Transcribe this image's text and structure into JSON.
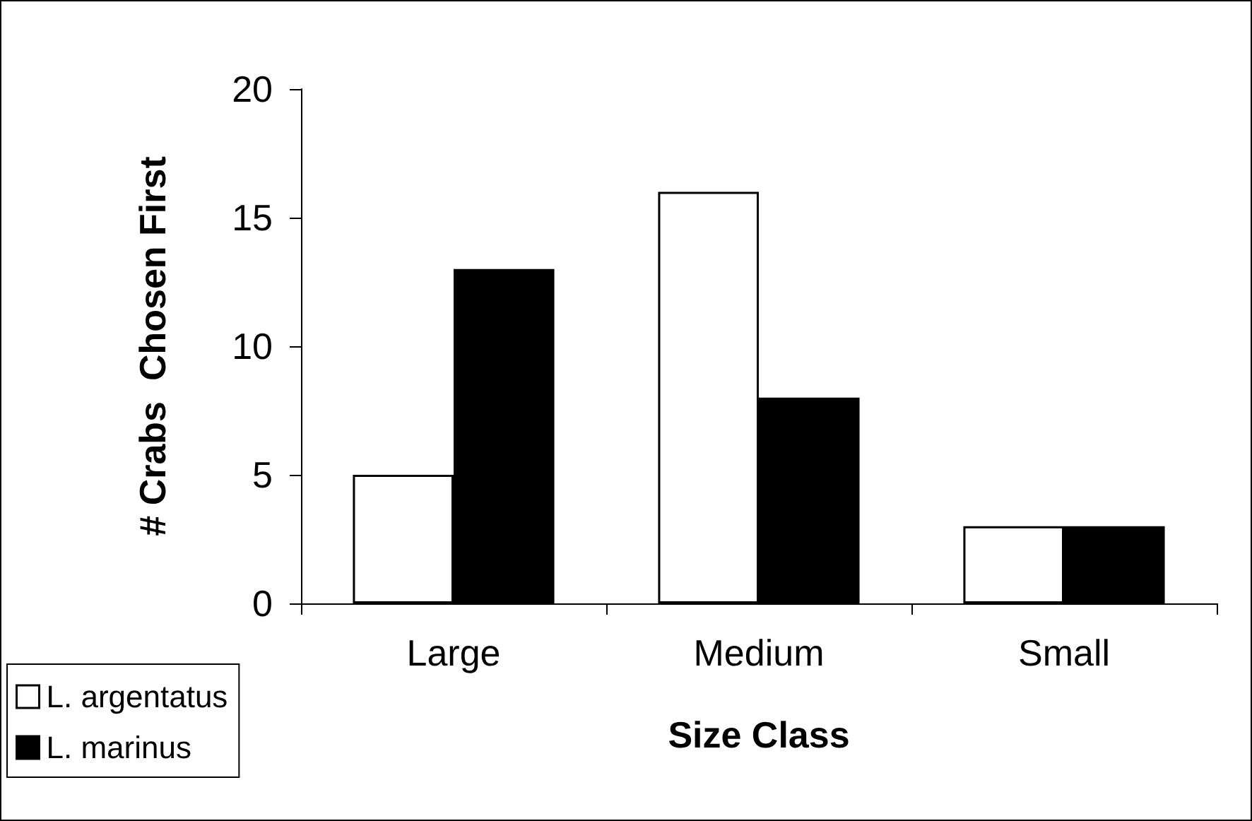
{
  "chart_data": {
    "type": "bar",
    "xlabel": "Size Class",
    "ylabel": "# Crabs  Chosen First",
    "categories": [
      "Large",
      "Medium",
      "Small"
    ],
    "series": [
      {
        "name": "L. argentatus",
        "color": "#ffffff",
        "values": [
          5,
          16,
          3
        ]
      },
      {
        "name": "L. marinus",
        "color": "#000000",
        "values": [
          13,
          8,
          3
        ]
      }
    ],
    "ylim": [
      0,
      20
    ],
    "yticks": [
      0,
      5,
      10,
      15,
      20
    ],
    "grid": false,
    "legend": "bottom left"
  }
}
